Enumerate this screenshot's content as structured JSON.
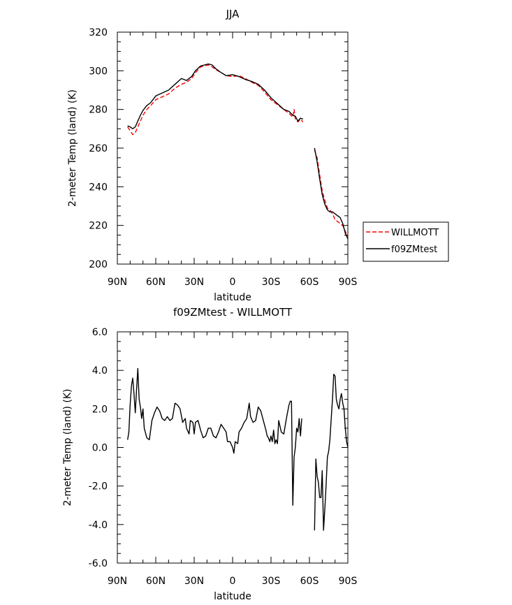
{
  "chart_data": [
    {
      "type": "line",
      "title": "JJA",
      "xlabel": "latitude",
      "ylabel": "2-meter Temp (land) (K)",
      "xlim": [
        90,
        -90
      ],
      "ylim": [
        200,
        320
      ],
      "x_tick_values": [
        90,
        60,
        30,
        0,
        -30,
        -60,
        -90
      ],
      "x_tick_labels": [
        "90N",
        "60N",
        "30N",
        "0",
        "30S",
        "60S",
        "90S"
      ],
      "y_tick_values": [
        200,
        220,
        240,
        260,
        280,
        300,
        320
      ],
      "y_tick_labels": [
        "200",
        "220",
        "240",
        "260",
        "280",
        "300",
        "320"
      ],
      "legend": {
        "placement": "right"
      },
      "series": [
        {
          "name": "WILLMOTT",
          "color": "#ff0000",
          "dash": "dashed",
          "segments": [
            [
              [
                82,
                271
              ],
              [
                80,
                269
              ],
              [
                78,
                267
              ],
              [
                76,
                268
              ],
              [
                74,
                271
              ],
              [
                72,
                274
              ],
              [
                70,
                277
              ],
              [
                67,
                280
              ],
              [
                64,
                282
              ],
              [
                60,
                285
              ],
              [
                55,
                286.5
              ],
              [
                50,
                288
              ],
              [
                45,
                291
              ],
              [
                40,
                293
              ],
              [
                36,
                294
              ],
              [
                32,
                296
              ],
              [
                29,
                299
              ],
              [
                25,
                302
              ],
              [
                22,
                302.5
              ],
              [
                19,
                303
              ],
              [
                16,
                302
              ],
              [
                13,
                300.5
              ],
              [
                10,
                299.5
              ],
              [
                5,
                297.5
              ],
              [
                0,
                297
              ],
              [
                -5,
                297.5
              ],
              [
                -10,
                296
              ],
              [
                -15,
                294
              ],
              [
                -20,
                292.5
              ],
              [
                -25,
                289
              ],
              [
                -30,
                285
              ],
              [
                -35,
                282.5
              ],
              [
                -40,
                280
              ],
              [
                -44,
                278
              ],
              [
                -47,
                276
              ],
              [
                -48,
                280
              ],
              [
                -49,
                275
              ],
              [
                -51,
                273.5
              ],
              [
                -53,
                275
              ],
              [
                -55,
                273.5
              ]
            ],
            [
              [
                -64,
                259
              ],
              [
                -66,
                255
              ],
              [
                -68,
                246
              ],
              [
                -70,
                238
              ],
              [
                -72,
                233
              ],
              [
                -74,
                229
              ],
              [
                -76,
                228
              ],
              [
                -78,
                226
              ],
              [
                -80,
                223
              ],
              [
                -82,
                222
              ],
              [
                -84,
                221
              ],
              [
                -86,
                220
              ],
              [
                -88,
                217
              ],
              [
                -90,
                214
              ]
            ]
          ]
        },
        {
          "name": "f09ZMtest",
          "color": "#000000",
          "dash": "solid",
          "segments": [
            [
              [
                82,
                271.5
              ],
              [
                80,
                271
              ],
              [
                78,
                270
              ],
              [
                76,
                271
              ],
              [
                74,
                274
              ],
              [
                72,
                277
              ],
              [
                70,
                279.5
              ],
              [
                67,
                282
              ],
              [
                64,
                283.5
              ],
              [
                60,
                287
              ],
              [
                55,
                288.5
              ],
              [
                50,
                290
              ],
              [
                45,
                293
              ],
              [
                40,
                296
              ],
              [
                36,
                295
              ],
              [
                32,
                297
              ],
              [
                29,
                300
              ],
              [
                25,
                302.5
              ],
              [
                22,
                303
              ],
              [
                19,
                303.5
              ],
              [
                16,
                303
              ],
              [
                13,
                301
              ],
              [
                10,
                299.5
              ],
              [
                5,
                297.5
              ],
              [
                0,
                298
              ],
              [
                -5,
                297
              ],
              [
                -10,
                295.5
              ],
              [
                -15,
                294.5
              ],
              [
                -20,
                293
              ],
              [
                -25,
                290
              ],
              [
                -30,
                286
              ],
              [
                -35,
                283
              ],
              [
                -40,
                280
              ],
              [
                -44,
                279
              ],
              [
                -47,
                277
              ],
              [
                -49,
                276.5
              ],
              [
                -51,
                274
              ],
              [
                -53,
                275.5
              ],
              [
                -55,
                275
              ]
            ],
            [
              [
                -64,
                260
              ],
              [
                -66,
                253
              ],
              [
                -68,
                244
              ],
              [
                -70,
                236
              ],
              [
                -72,
                231
              ],
              [
                -74,
                228
              ],
              [
                -76,
                227
              ],
              [
                -78,
                227
              ],
              [
                -80,
                226
              ],
              [
                -82,
                225
              ],
              [
                -84,
                224
              ],
              [
                -86,
                221
              ],
              [
                -88,
                216
              ],
              [
                -90,
                213
              ]
            ]
          ]
        }
      ]
    },
    {
      "type": "line",
      "title": "f09ZMtest - WILLMOTT",
      "xlabel": "latitude",
      "ylabel": "2-meter Temp (land) (K)",
      "xlim": [
        90,
        -90
      ],
      "ylim": [
        -6,
        6
      ],
      "x_tick_values": [
        90,
        60,
        30,
        0,
        -30,
        -60,
        -90
      ],
      "x_tick_labels": [
        "90N",
        "60N",
        "30N",
        "0",
        "30S",
        "60S",
        "90S"
      ],
      "y_tick_values": [
        -6,
        -4,
        -2,
        0,
        2,
        4,
        6
      ],
      "y_tick_labels": [
        "-6.0",
        "-4.0",
        "-2.0",
        "0.0",
        "2.0",
        "4.0",
        "6.0"
      ],
      "series": [
        {
          "color": "#000000",
          "dash": "solid",
          "segments": [
            [
              [
                82,
                0.4
              ],
              [
                81,
                0.8
              ],
              [
                80,
                2.2
              ],
              [
                79,
                3.2
              ],
              [
                78,
                3.6
              ],
              [
                77,
                2.8
              ],
              [
                76,
                1.8
              ],
              [
                75,
                3.0
              ],
              [
                74,
                4.1
              ],
              [
                73,
                2.5
              ],
              [
                72,
                2.1
              ],
              [
                71,
                1.5
              ],
              [
                70,
                2.0
              ],
              [
                69,
                1.0
              ],
              [
                67,
                0.5
              ],
              [
                65,
                0.4
              ],
              [
                63,
                1.4
              ],
              [
                61,
                1.8
              ],
              [
                59,
                2.1
              ],
              [
                57,
                1.9
              ],
              [
                55,
                1.5
              ],
              [
                53,
                1.4
              ],
              [
                51,
                1.6
              ],
              [
                49,
                1.4
              ],
              [
                47,
                1.5
              ],
              [
                45,
                2.3
              ],
              [
                43,
                2.2
              ],
              [
                41,
                2.0
              ],
              [
                39,
                1.3
              ],
              [
                37,
                1.5
              ],
              [
                36,
                1.0
              ],
              [
                34,
                0.7
              ],
              [
                33,
                1.4
              ],
              [
                31,
                1.3
              ],
              [
                30,
                0.7
              ],
              [
                29,
                1.3
              ],
              [
                27,
                1.4
              ],
              [
                25,
                0.9
              ],
              [
                23,
                0.5
              ],
              [
                21,
                0.6
              ],
              [
                19,
                1.0
              ],
              [
                17,
                1.0
              ],
              [
                15,
                0.6
              ],
              [
                13,
                0.5
              ],
              [
                11,
                0.8
              ],
              [
                9,
                1.2
              ],
              [
                7,
                1.0
              ],
              [
                5,
                0.8
              ],
              [
                4,
                0.3
              ],
              [
                2,
                0.3
              ],
              [
                0,
                0.0
              ],
              [
                -1,
                -0.3
              ],
              [
                -2,
                0.3
              ],
              [
                -4,
                0.2
              ],
              [
                -5,
                0.8
              ],
              [
                -7,
                1.0
              ],
              [
                -9,
                1.3
              ],
              [
                -11,
                1.5
              ],
              [
                -13,
                2.3
              ],
              [
                -14,
                1.6
              ],
              [
                -16,
                1.3
              ],
              [
                -18,
                1.4
              ],
              [
                -20,
                2.1
              ],
              [
                -22,
                1.9
              ],
              [
                -24,
                1.4
              ],
              [
                -26,
                0.9
              ],
              [
                -27,
                0.6
              ],
              [
                -28,
                0.5
              ],
              [
                -29,
                0.3
              ],
              [
                -30,
                0.6
              ],
              [
                -31,
                0.3
              ],
              [
                -32,
                0.9
              ],
              [
                -33,
                0.2
              ],
              [
                -34,
                0.4
              ],
              [
                -35,
                0.2
              ],
              [
                -36,
                1.4
              ],
              [
                -38,
                0.8
              ],
              [
                -40,
                0.7
              ],
              [
                -42,
                1.5
              ],
              [
                -44,
                2.2
              ],
              [
                -45,
                2.4
              ],
              [
                -46,
                2.4
              ],
              [
                -47,
                -3.0
              ],
              [
                -48,
                -0.5
              ],
              [
                -49,
                0.0
              ],
              [
                -50,
                1.0
              ],
              [
                -51,
                0.8
              ],
              [
                -52,
                1.5
              ],
              [
                -53,
                0.6
              ],
              [
                -54,
                1.5
              ]
            ],
            [
              [
                -64,
                -4.3
              ],
              [
                -65,
                -0.6
              ],
              [
                -66,
                -1.5
              ],
              [
                -67,
                -1.8
              ],
              [
                -68,
                -2.6
              ],
              [
                -69,
                -2.6
              ],
              [
                -70,
                -1.2
              ],
              [
                -71,
                -4.3
              ],
              [
                -72,
                -3.2
              ],
              [
                -73,
                -2.0
              ],
              [
                -74,
                -0.5
              ],
              [
                -75,
                -0.2
              ],
              [
                -76,
                0.4
              ],
              [
                -77,
                1.5
              ],
              [
                -78,
                2.5
              ],
              [
                -79,
                3.8
              ],
              [
                -80,
                3.7
              ],
              [
                -81,
                2.5
              ],
              [
                -82,
                2.2
              ],
              [
                -83,
                2.0
              ],
              [
                -84,
                2.5
              ],
              [
                -85,
                2.8
              ],
              [
                -86,
                2.3
              ],
              [
                -87,
                2.0
              ],
              [
                -88,
                1.0
              ],
              [
                -89,
                0.3
              ],
              [
                -90,
                0.0
              ]
            ]
          ]
        }
      ]
    }
  ]
}
